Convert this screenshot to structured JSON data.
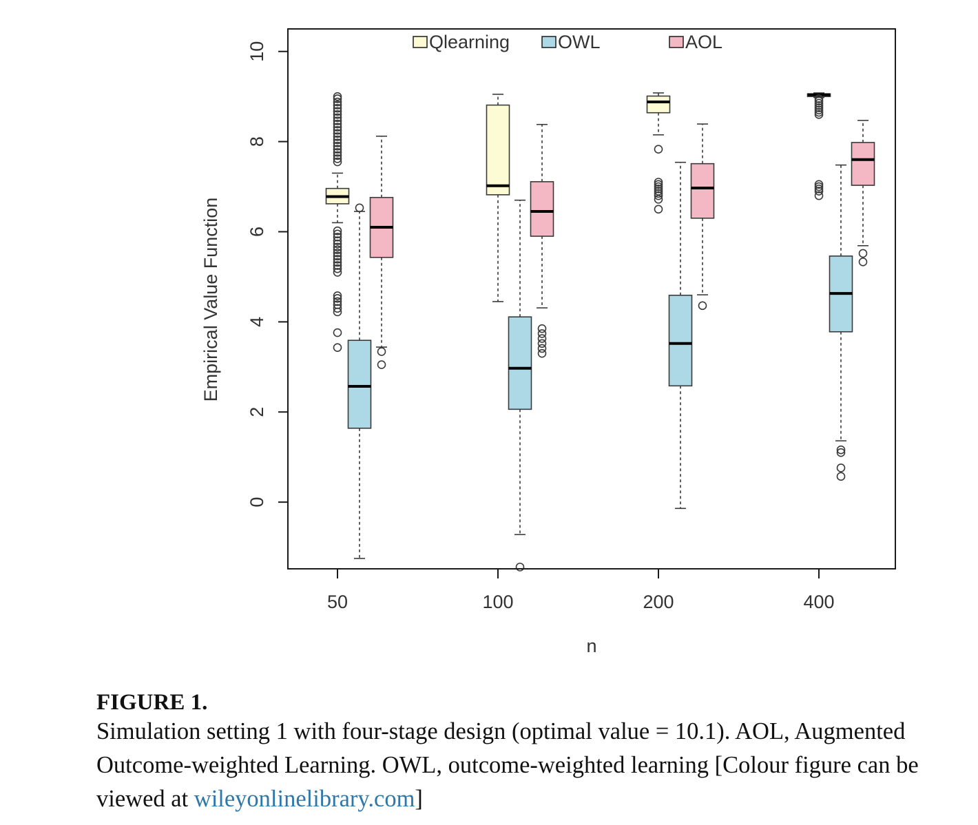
{
  "chart_data": {
    "type": "box",
    "xlabel": "n",
    "ylabel": "Empirical Value Function",
    "categories": [
      "50",
      "100",
      "200",
      "400"
    ],
    "yticks": [
      0,
      2,
      4,
      6,
      8,
      10
    ],
    "ylim": [
      -1.48,
      10.5
    ],
    "grid": false,
    "legend": "top",
    "series": [
      {
        "name": "Qlearning",
        "color": "#fcfbd4",
        "boxes": [
          {
            "whislo": 6.2,
            "q1": 6.62,
            "med": 6.78,
            "q3": 6.96,
            "whishi": 7.3,
            "fliers": [
              7.55,
              7.62,
              7.69,
              7.76,
              7.83,
              7.9,
              7.97,
              8.04,
              8.11,
              8.18,
              8.25,
              8.32,
              8.39,
              8.46,
              8.53,
              8.6,
              8.67,
              8.74,
              8.81,
              8.88,
              8.95,
              9.0,
              6.02,
              5.95,
              5.88,
              5.8,
              5.73,
              5.66,
              5.6,
              5.53,
              5.46,
              5.39,
              5.32,
              5.25,
              5.18,
              5.1,
              4.58,
              4.52,
              4.45,
              4.38,
              4.3,
              4.22,
              3.76,
              3.43
            ]
          },
          {
            "whislo": 4.45,
            "q1": 6.82,
            "med": 7.02,
            "q3": 8.81,
            "whishi": 9.05,
            "fliers": []
          },
          {
            "whislo": 8.15,
            "q1": 8.64,
            "med": 8.88,
            "q3": 9.01,
            "whishi": 9.08,
            "fliers": [
              7.83,
              7.1,
              7.05,
              7.0,
              6.95,
              6.9,
              6.85,
              6.8,
              6.72,
              6.5
            ]
          },
          {
            "whislo": 8.98,
            "q1": 9.0,
            "med": 9.04,
            "q3": 9.06,
            "whishi": 9.08,
            "fliers": [
              8.95,
              8.9,
              8.85,
              8.8,
              8.75,
              8.7,
              8.65,
              8.6,
              7.05,
              7.0,
              6.95,
              6.9,
              6.8
            ]
          }
        ]
      },
      {
        "name": "OWL",
        "color": "#add8e6",
        "boxes": [
          {
            "whislo": -1.25,
            "q1": 1.64,
            "med": 2.57,
            "q3": 3.59,
            "whishi": 6.45,
            "fliers": [
              6.53
            ]
          },
          {
            "whislo": -0.72,
            "q1": 2.06,
            "med": 2.97,
            "q3": 4.11,
            "whishi": 6.7,
            "fliers": [
              -1.44
            ]
          },
          {
            "whislo": -0.14,
            "q1": 2.58,
            "med": 3.52,
            "q3": 4.59,
            "whishi": 7.54,
            "fliers": []
          },
          {
            "whislo": 1.36,
            "q1": 3.78,
            "med": 4.63,
            "q3": 5.46,
            "whishi": 7.48,
            "fliers": [
              1.16,
              1.1,
              0.76,
              0.57
            ]
          }
        ]
      },
      {
        "name": "AOL",
        "color": "#f4b8c4",
        "boxes": [
          {
            "whislo": 3.44,
            "q1": 5.43,
            "med": 6.1,
            "q3": 6.76,
            "whishi": 8.12,
            "fliers": [
              3.34,
              3.05
            ]
          },
          {
            "whislo": 4.31,
            "q1": 5.9,
            "med": 6.45,
            "q3": 7.11,
            "whishi": 8.38,
            "fliers": [
              3.85,
              3.74,
              3.63,
              3.52,
              3.41,
              3.3
            ]
          },
          {
            "whislo": 4.6,
            "q1": 6.3,
            "med": 6.97,
            "q3": 7.51,
            "whishi": 8.39,
            "fliers": [
              4.36
            ]
          },
          {
            "whislo": 5.69,
            "q1": 7.03,
            "med": 7.6,
            "q3": 7.98,
            "whishi": 8.47,
            "fliers": [
              5.52,
              5.33
            ]
          }
        ]
      }
    ]
  },
  "caption": {
    "label": "FIGURE 1.",
    "lines": [
      "Simulation setting 1 with four-stage design (optimal value = 10.1). AOL, Augmented",
      "Outcome-weighted Learning. OWL, outcome-weighted learning [Colour figure can be"
    ],
    "last_line_prefix": "viewed at ",
    "link_text": "wileyonlinelibrary.com",
    "last_line_suffix": "]",
    "link_color": "#2e77a8"
  }
}
